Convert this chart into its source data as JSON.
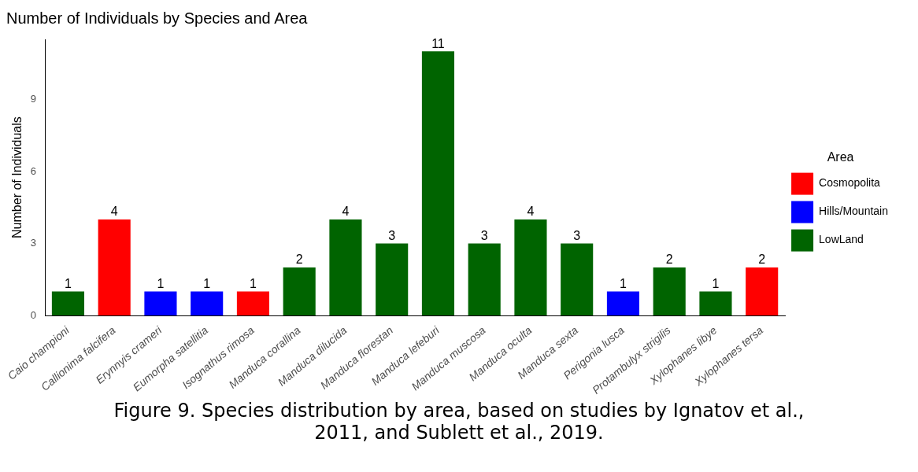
{
  "chart_data": {
    "type": "bar",
    "title": "Number of Individuals by Species and Area",
    "ylabel": "Number of Individuals",
    "legend_title": "Area",
    "categories": [
      "Caio championi",
      "Callionima falcifera",
      "Erynnyis crameri",
      "Eumorpha satellitia",
      "Isognathus rimosa",
      "Manduca corallina",
      "Manduca dilucida",
      "Manduca florestan",
      "Manduca lefeburi",
      "Manduca muscosa",
      "Manduca oculta",
      "Manduca sexta",
      "Perigonia lusca",
      "Protambulyx strigilis",
      "Xylophanes libye",
      "Xylophanes tersa"
    ],
    "series": [
      {
        "name": "Cosmopolita",
        "color": "#ff0000",
        "values": [
          null,
          4,
          null,
          null,
          1,
          null,
          null,
          null,
          null,
          null,
          null,
          null,
          null,
          null,
          null,
          2
        ]
      },
      {
        "name": "Hills/Mountain",
        "color": "#0000ff",
        "values": [
          null,
          null,
          1,
          1,
          null,
          null,
          null,
          null,
          null,
          null,
          null,
          null,
          1,
          null,
          null,
          null
        ]
      },
      {
        "name": "LowLand",
        "color": "#006400",
        "values": [
          1,
          null,
          null,
          null,
          null,
          2,
          4,
          3,
          11,
          3,
          4,
          3,
          null,
          2,
          1,
          null
        ]
      }
    ],
    "ylim": [
      0,
      11.5
    ],
    "yticks": [
      0,
      3,
      6,
      9
    ],
    "grid": false,
    "legend": "right",
    "data_labels": true,
    "annotations": [
      "Figure 9. Species distribution by area, based on studies by Ignatov et al., 2011, and Sublett et al., 2019."
    ]
  }
}
